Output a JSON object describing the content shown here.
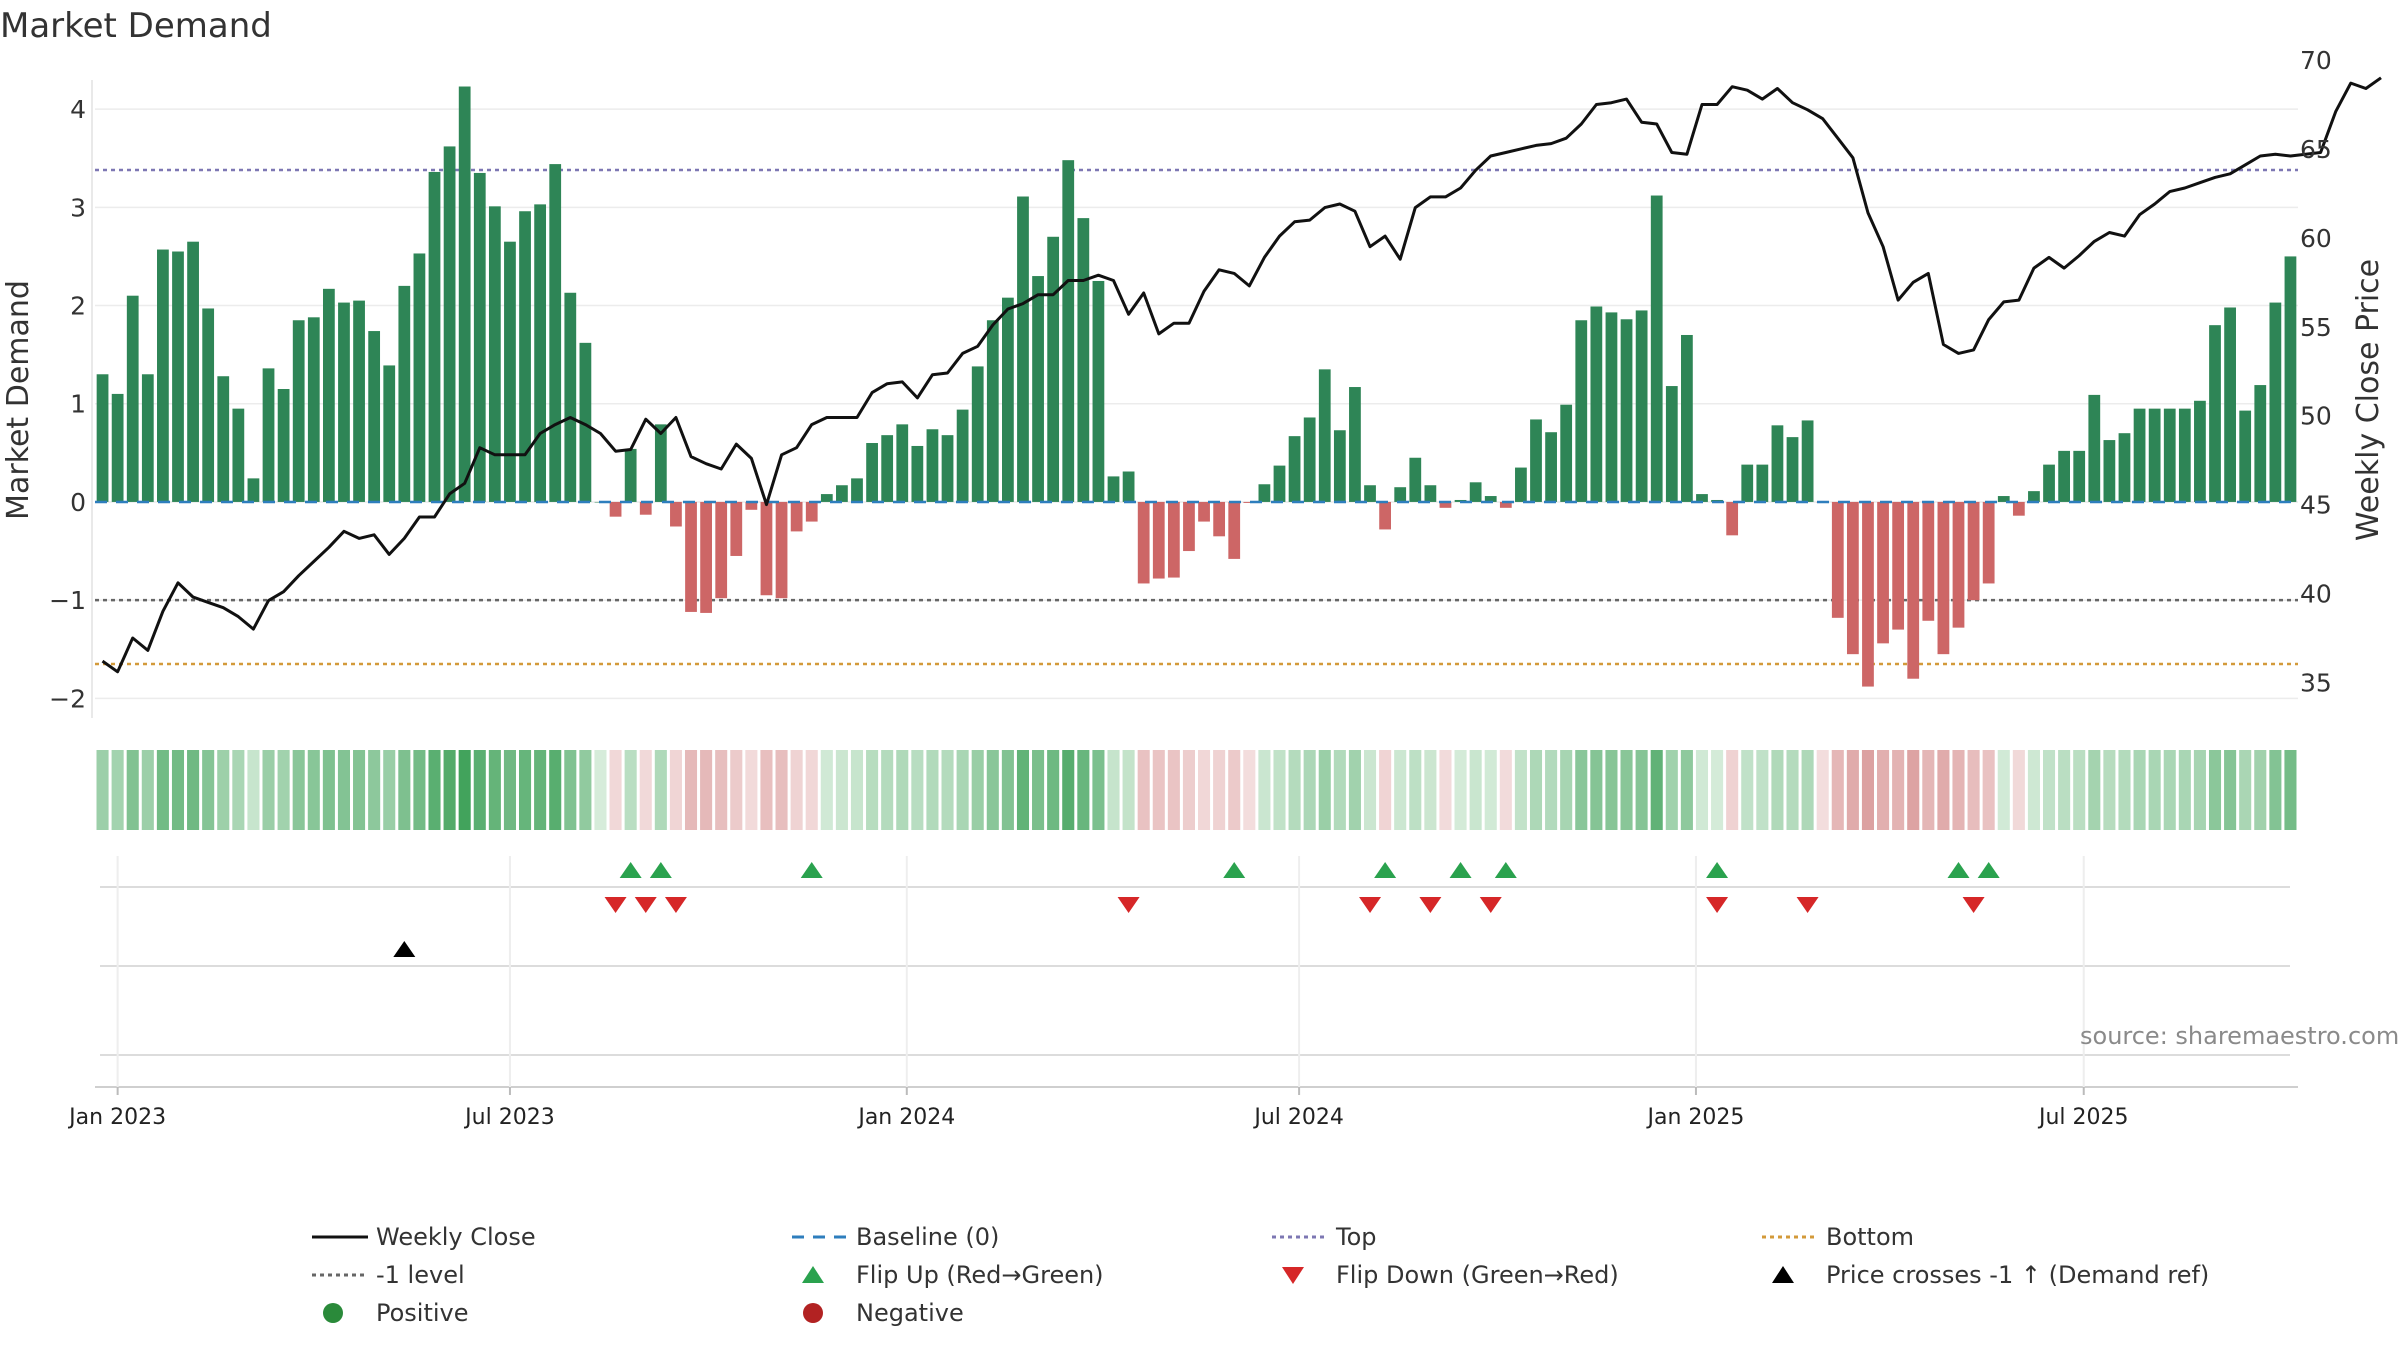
{
  "title": "Market Demand",
  "source": "source: sharemaestro.com",
  "chart_data": {
    "type": "bar",
    "title": "Market Demand",
    "ylabel": "Market Demand",
    "y2label": "Weekly Close Price",
    "ylim": [
      -2.2,
      4.5
    ],
    "y2lim": [
      33,
      70
    ],
    "yticks": [
      -2,
      -1,
      0,
      1,
      2,
      3,
      4
    ],
    "yticklabels": [
      "−2",
      "−1",
      "0",
      "1",
      "2",
      "3",
      "4"
    ],
    "y2ticks": [
      35,
      40,
      45,
      50,
      55,
      60,
      65,
      70
    ],
    "xticks": [
      {
        "label": "Jan 2023",
        "week": 1.5
      },
      {
        "label": "Jul 2023",
        "week": 27.5
      },
      {
        "label": "Jan 2024",
        "week": 53.8
      },
      {
        "label": "Jul 2024",
        "week": 79.8
      },
      {
        "label": "Jan 2025",
        "week": 106.1
      },
      {
        "label": "Jul 2025",
        "week": 131.8
      }
    ],
    "reference_lines": {
      "top": 3.38,
      "minus_one": -1,
      "bottom": -1.65,
      "baseline": 0
    },
    "demand": [
      1.3,
      1.1,
      2.1,
      1.3,
      2.57,
      2.55,
      2.65,
      1.97,
      1.28,
      0.95,
      0.24,
      1.36,
      1.15,
      1.85,
      1.88,
      2.17,
      2.03,
      2.05,
      1.74,
      1.39,
      2.2,
      2.53,
      3.36,
      3.62,
      4.23,
      3.35,
      3.01,
      2.65,
      2.96,
      3.03,
      3.44,
      2.13,
      1.62,
      0,
      -0.15,
      0.54,
      -0.13,
      0.79,
      -0.25,
      -1.12,
      -1.13,
      -0.98,
      -0.55,
      -0.08,
      -0.95,
      -0.98,
      -0.3,
      -0.2,
      0.08,
      0.17,
      0.24,
      0.6,
      0.68,
      0.79,
      0.57,
      0.74,
      0.68,
      0.94,
      1.38,
      1.85,
      2.08,
      3.11,
      2.3,
      2.7,
      3.48,
      2.89,
      2.25,
      0.26,
      0.31,
      -0.83,
      -0.78,
      -0.77,
      -0.5,
      -0.2,
      -0.35,
      -0.58,
      -0.01,
      0.18,
      0.37,
      0.67,
      0.86,
      1.35,
      0.73,
      1.17,
      0.17,
      -0.28,
      0.15,
      0.45,
      0.17,
      -0.06,
      0.02,
      0.2,
      0.06,
      -0.06,
      0.35,
      0.84,
      0.71,
      0.99,
      1.85,
      1.99,
      1.93,
      1.86,
      1.95,
      3.12,
      1.18,
      1.7,
      0.08,
      0.02,
      -0.34,
      0.38,
      0.38,
      0.78,
      0.66,
      0.83,
      -0.01,
      -1.18,
      -1.55,
      -1.88,
      -1.44,
      -1.3,
      -1.8,
      -1.21,
      -1.55,
      -1.28,
      -1.0,
      -0.83,
      0.06,
      -0.14,
      0.11,
      0.38,
      0.52,
      0.52,
      1.09,
      0.63,
      0.7,
      0.95,
      0.95,
      0.95,
      0.95,
      1.03,
      1.8,
      1.98,
      0.93,
      1.19,
      2.03,
      2.5
    ],
    "close": [
      36.2,
      35.6,
      37.5,
      36.8,
      39.0,
      40.6,
      39.8,
      39.5,
      39.2,
      38.7,
      38.0,
      39.6,
      40.1,
      41.0,
      41.8,
      42.6,
      43.5,
      43.1,
      43.3,
      42.2,
      43.1,
      44.3,
      44.3,
      45.6,
      46.2,
      48.2,
      47.8,
      47.8,
      47.8,
      49.0,
      49.5,
      49.9,
      49.5,
      49.0,
      48.0,
      48.1,
      49.8,
      49.0,
      49.9,
      47.7,
      47.3,
      47.0,
      48.4,
      47.6,
      45.0,
      47.8,
      48.2,
      49.5,
      49.9,
      49.9,
      49.9,
      51.3,
      51.8,
      51.9,
      51.0,
      52.3,
      52.4,
      53.5,
      53.9,
      55.1,
      56.0,
      56.3,
      56.8,
      56.8,
      57.6,
      57.6,
      57.9,
      57.6,
      55.7,
      56.9,
      54.6,
      55.2,
      55.2,
      57.0,
      58.2,
      58.0,
      57.3,
      58.9,
      60.1,
      60.9,
      61.0,
      61.7,
      61.9,
      61.5,
      59.5,
      60.1,
      58.8,
      61.7,
      62.3,
      62.3,
      62.8,
      63.8,
      64.6,
      64.8,
      65.0,
      65.2,
      65.3,
      65.6,
      66.4,
      67.5,
      67.6,
      67.8,
      66.5,
      66.4,
      64.8,
      64.7,
      67.5,
      67.5,
      68.5,
      68.3,
      67.8,
      68.4,
      67.6,
      67.2,
      66.7,
      65.6,
      64.5,
      61.4,
      59.5,
      56.5,
      57.5,
      58.0,
      54.0,
      53.5,
      53.7,
      55.4,
      56.4,
      56.5,
      58.3,
      58.9,
      58.3,
      59.0,
      59.8,
      60.3,
      60.1,
      61.3,
      61.9,
      62.6,
      62.8,
      63.1,
      63.4,
      63.6,
      64.1,
      64.6,
      64.7,
      64.6,
      64.7,
      64.8,
      67.1,
      68.7,
      68.4,
      69.0
    ]
  },
  "flip_up_weeks": [
    35,
    37,
    47,
    75,
    85,
    90,
    93,
    107,
    123,
    125
  ],
  "flip_down_weeks": [
    34,
    36,
    38,
    68,
    84,
    88,
    92,
    107,
    113,
    124
  ],
  "demand_ref_weeks": [
    20
  ],
  "colors": {
    "positive": "#2e8556",
    "negative": "#cd6666",
    "price": "#111111",
    "baseline": "#2e7ebd",
    "top": "#7d77b3",
    "minus_one": "#666666",
    "bottom": "#d39a3a",
    "flip_up": "#2aa24e",
    "flip_down": "#d62728",
    "demand_ref": "#000000"
  },
  "legend": [
    {
      "label": "Weekly Close",
      "symbol": "line-solid",
      "color": "#111111"
    },
    {
      "label": "Baseline (0)",
      "symbol": "line-dashed",
      "color": "#2e7ebd"
    },
    {
      "label": "Top",
      "symbol": "line-dotted",
      "color": "#7d77b3"
    },
    {
      "label": "Bottom",
      "symbol": "line-dotted",
      "color": "#d39a3a"
    },
    {
      "label": "-1 level",
      "symbol": "line-dotted",
      "color": "#666666"
    },
    {
      "label": "Flip Up (Red→Green)",
      "symbol": "triangle-up",
      "color": "#2aa24e"
    },
    {
      "label": "Flip Down (Green→Red)",
      "symbol": "triangle-down",
      "color": "#d62728"
    },
    {
      "label": "Price crosses -1 ↑ (Demand ref)",
      "symbol": "triangle-up",
      "color": "#000000"
    },
    {
      "label": "Positive",
      "symbol": "dot",
      "color": "#2a8a3a"
    },
    {
      "label": "Negative",
      "symbol": "dot",
      "color": "#b22222"
    }
  ]
}
